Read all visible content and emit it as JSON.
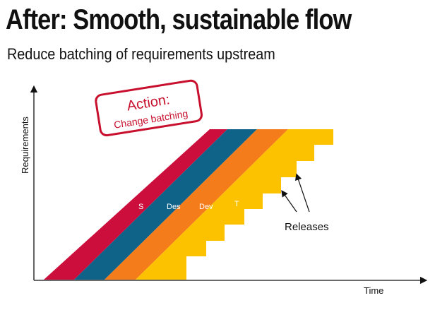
{
  "header": {
    "title": "After: Smooth, sustainable flow",
    "subtitle": "Reduce batching of requirements upstream"
  },
  "axes": {
    "y_label": "Requirements",
    "x_label": "Time"
  },
  "action_box": {
    "line1": "Action:",
    "line2": "Change batching"
  },
  "bands": [
    {
      "label": "S",
      "color": "#cc0e3c"
    },
    {
      "label": "Des",
      "color": "#0f6388"
    },
    {
      "label": "Dev",
      "color": "#f47c1a"
    },
    {
      "label": "T",
      "color": "#fcc200"
    }
  ],
  "annotation": {
    "releases_label": "Releases"
  },
  "colors": {
    "stamp_red": "#c8102e",
    "axis": "#111111"
  }
}
